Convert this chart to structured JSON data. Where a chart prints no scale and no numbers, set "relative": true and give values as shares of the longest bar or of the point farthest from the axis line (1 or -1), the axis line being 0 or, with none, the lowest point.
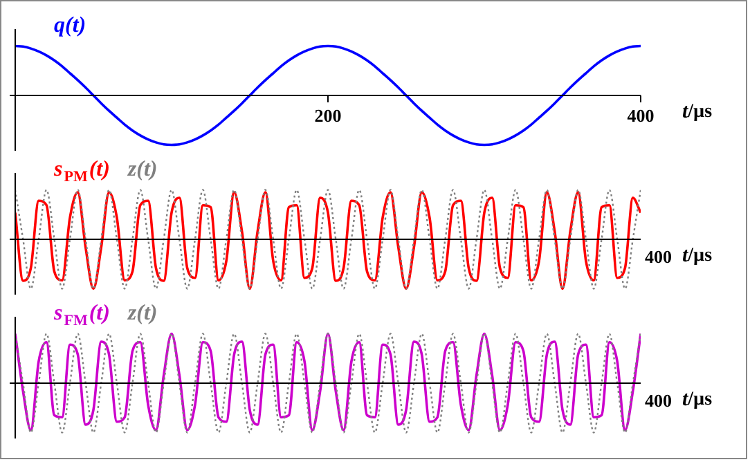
{
  "chart_data": [
    {
      "type": "line",
      "relative": true,
      "xlabel": "t/µs",
      "xlim": [
        0,
        400
      ],
      "xticks": [
        200,
        400
      ],
      "x": [
        0,
        5,
        10,
        15,
        20,
        25,
        30,
        35,
        40,
        45,
        50,
        55,
        60,
        65,
        70,
        75,
        80,
        85,
        90,
        95,
        100,
        105,
        110,
        115,
        120,
        125,
        130,
        135,
        140,
        145,
        150,
        155,
        160,
        165,
        170,
        175,
        180,
        185,
        190,
        195,
        200,
        205,
        210,
        215,
        220,
        225,
        230,
        235,
        240,
        245,
        250,
        255,
        260,
        265,
        270,
        275,
        280,
        285,
        290,
        295,
        300,
        305,
        310,
        315,
        320,
        325,
        330,
        335,
        340,
        345,
        350,
        355,
        360,
        365,
        370,
        375,
        380,
        385,
        390,
        395,
        400
      ],
      "legend": false,
      "grid": false,
      "series": [
        {
          "name": "q(t)",
          "color": "#0000ff",
          "line_style": "solid",
          "values": [
            1,
            0.99,
            0.95,
            0.89,
            0.81,
            0.71,
            0.59,
            0.45,
            0.31,
            0.16,
            0,
            -0.16,
            -0.31,
            -0.45,
            -0.59,
            -0.71,
            -0.81,
            -0.89,
            -0.95,
            -0.99,
            -1,
            -0.99,
            -0.95,
            -0.89,
            -0.81,
            -0.71,
            -0.59,
            -0.45,
            -0.31,
            -0.16,
            0,
            0.16,
            0.31,
            0.45,
            0.59,
            0.71,
            0.81,
            0.89,
            0.95,
            0.99,
            1,
            0.99,
            0.95,
            0.89,
            0.81,
            0.71,
            0.59,
            0.45,
            0.31,
            0.16,
            0,
            -0.16,
            -0.31,
            -0.45,
            -0.59,
            -0.71,
            -0.81,
            -0.89,
            -0.95,
            -0.99,
            -1,
            -0.99,
            -0.95,
            -0.89,
            -0.81,
            -0.71,
            -0.59,
            -0.45,
            -0.31,
            -0.16,
            0,
            0.16,
            0.31,
            0.45,
            0.59,
            0.71,
            0.81,
            0.89,
            0.95,
            0.99,
            1
          ]
        }
      ]
    },
    {
      "type": "line",
      "relative": true,
      "xlabel": "t/µs",
      "annotations": [
        "400"
      ],
      "categories": [
        null,
        null,
        null,
        null,
        null,
        null,
        null,
        null,
        null,
        null,
        null,
        null,
        null,
        null,
        null,
        null,
        null,
        null,
        null,
        null,
        null,
        null,
        null,
        null,
        null,
        null,
        null,
        null,
        null,
        null,
        null,
        null,
        null,
        null,
        null,
        null,
        null,
        null,
        null,
        null,
        null,
        null,
        null,
        null,
        null,
        null,
        null,
        null,
        null,
        null,
        null,
        null,
        null,
        null,
        null,
        null,
        null,
        null,
        null,
        null,
        null,
        null,
        null,
        null,
        null,
        null,
        null,
        null,
        null,
        null,
        null,
        null,
        null,
        null,
        null,
        null,
        null,
        null,
        null,
        null,
        null
      ],
      "legend": false,
      "grid": false,
      "series": [
        {
          "name": "z(t)",
          "color": "#808080",
          "line_style": "dotted",
          "values": [
            1,
            0,
            -1,
            0,
            1,
            0,
            -1,
            0,
            1,
            0,
            -1,
            0,
            1,
            0,
            -1,
            0,
            1,
            0,
            -1,
            0,
            1,
            0,
            -1,
            0,
            1,
            0,
            -1,
            0,
            1,
            0,
            -1,
            0,
            1,
            0,
            -1,
            0,
            1,
            0,
            -1,
            0,
            1,
            0,
            -1,
            0,
            1,
            0,
            -1,
            0,
            1,
            0,
            -1,
            0,
            1,
            0,
            -1,
            0,
            1,
            0,
            -1,
            0,
            1,
            0,
            -1,
            0,
            1,
            0,
            -1,
            0,
            1,
            0,
            -1,
            0,
            1,
            0,
            -1,
            0,
            1,
            0,
            -1,
            0,
            1
          ]
        },
        {
          "name": "s$_{PM}$(t)",
          "color": "#ff0000",
          "line_style": "solid",
          "values": [
            0.54,
            -0.84,
            -0.58,
            0.78,
            0.69,
            -0.65,
            -0.83,
            0.44,
            0.95,
            -0.16,
            -1,
            -0.16,
            0.95,
            0.44,
            -0.83,
            -0.65,
            0.69,
            0.78,
            -0.58,
            -0.84,
            0.54,
            0.84,
            -0.58,
            -0.78,
            0.69,
            0.65,
            -0.83,
            -0.44,
            0.95,
            0.16,
            -1,
            0.16,
            0.95,
            -0.44,
            -0.83,
            0.65,
            0.69,
            -0.78,
            -0.58,
            0.84,
            0.54,
            -0.84,
            -0.58,
            0.78,
            0.69,
            -0.65,
            -0.83,
            0.44,
            0.95,
            -0.16,
            -1,
            -0.16,
            0.95,
            0.44,
            -0.83,
            -0.65,
            0.69,
            0.78,
            -0.58,
            -0.84,
            0.54,
            0.84,
            -0.58,
            -0.78,
            0.69,
            0.65,
            -0.83,
            -0.44,
            0.95,
            0.16,
            -1,
            0.16,
            0.95,
            -0.44,
            -0.83,
            0.65,
            0.69,
            -0.78,
            -0.58,
            0.84,
            0.54
          ]
        }
      ]
    },
    {
      "type": "line",
      "relative": true,
      "xlabel": "t/µs",
      "annotations": [
        "400"
      ],
      "categories": [
        null,
        null,
        null,
        null,
        null,
        null,
        null,
        null,
        null,
        null,
        null,
        null,
        null,
        null,
        null,
        null,
        null,
        null,
        null,
        null,
        null,
        null,
        null,
        null,
        null,
        null,
        null,
        null,
        null,
        null,
        null,
        null,
        null,
        null,
        null,
        null,
        null,
        null,
        null,
        null,
        null,
        null,
        null,
        null,
        null,
        null,
        null,
        null,
        null,
        null,
        null,
        null,
        null,
        null,
        null,
        null,
        null,
        null,
        null,
        null,
        null,
        null,
        null,
        null,
        null,
        null,
        null,
        null,
        null,
        null,
        null,
        null,
        null,
        null,
        null,
        null,
        null,
        null,
        null,
        null,
        null
      ],
      "legend": false,
      "grid": false,
      "series": [
        {
          "name": "z(t)",
          "color": "#808080",
          "line_style": "dotted",
          "values": [
            1,
            0,
            -1,
            0,
            1,
            0,
            -1,
            0,
            1,
            0,
            -1,
            0,
            1,
            0,
            -1,
            0,
            1,
            0,
            -1,
            0,
            1,
            0,
            -1,
            0,
            1,
            0,
            -1,
            0,
            1,
            0,
            -1,
            0,
            1,
            0,
            -1,
            0,
            1,
            0,
            -1,
            0,
            1,
            0,
            -1,
            0,
            1,
            0,
            -1,
            0,
            1,
            0,
            -1,
            0,
            1,
            0,
            -1,
            0,
            1,
            0,
            -1,
            0,
            1,
            0,
            -1,
            0,
            1,
            0,
            -1,
            0,
            1,
            0,
            -1,
            0,
            1,
            0,
            -1,
            0,
            1,
            0,
            -1,
            0,
            1
          ]
        },
        {
          "name": "s$_{FM}$(t)",
          "color": "#cc00cc",
          "line_style": "solid",
          "values": [
            1,
            -0.16,
            -0.95,
            0.44,
            0.83,
            -0.65,
            -0.69,
            0.78,
            0.58,
            -0.84,
            -0.54,
            0.84,
            0.58,
            -0.78,
            -0.69,
            0.65,
            0.83,
            -0.44,
            -0.95,
            0.16,
            1,
            0.16,
            -0.95,
            -0.44,
            0.83,
            0.65,
            -0.69,
            -0.78,
            0.58,
            0.84,
            -0.54,
            -0.84,
            0.58,
            0.78,
            -0.69,
            -0.65,
            0.83,
            0.44,
            -0.95,
            -0.16,
            1,
            -0.16,
            -0.95,
            0.44,
            0.83,
            -0.65,
            -0.69,
            0.78,
            0.58,
            -0.84,
            -0.54,
            0.84,
            0.58,
            -0.78,
            -0.69,
            0.65,
            0.83,
            -0.44,
            -0.95,
            0.16,
            1,
            0.16,
            -0.95,
            -0.44,
            0.83,
            0.65,
            -0.69,
            -0.78,
            0.58,
            0.84,
            -0.54,
            -0.84,
            0.58,
            0.78,
            -0.69,
            -0.65,
            0.83,
            0.44,
            -0.95,
            -0.16,
            1
          ]
        }
      ]
    }
  ]
}
